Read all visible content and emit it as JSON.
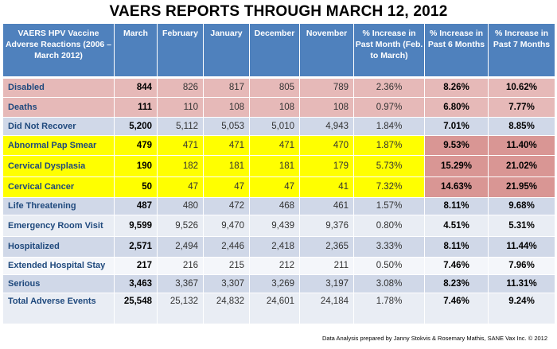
{
  "title": "VAERS REPORTS  THROUGH MARCH 12, 2012",
  "headers": [
    "VAERS HPV Vaccine Adverse Reactions (2006 – March 2012)",
    "March",
    "February",
    "January",
    "December",
    "November",
    "% Increase in Past Month (Feb. to March)",
    "% Increase in Past 6 Months",
    "% Increase in Past 7 Months"
  ],
  "rows": [
    {
      "label": "Disabled",
      "values": [
        "844",
        "826",
        "817",
        "805",
        "789",
        "2.36%",
        "8.26%",
        "10.62%"
      ],
      "style": "pink"
    },
    {
      "label": "Deaths",
      "values": [
        "111",
        "110",
        "108",
        "108",
        "108",
        "0.97%",
        "6.80%",
        "7.77%"
      ],
      "style": "pink"
    },
    {
      "label": "Did Not Recover",
      "values": [
        "5,200",
        "5,112",
        "5,053",
        "5,010",
        "4,943",
        "1.84%",
        "7.01%",
        "8.85%"
      ],
      "style": "blue"
    },
    {
      "label": "Abnormal Pap Smear",
      "values": [
        "479",
        "471",
        "471",
        "471",
        "470",
        "1.87%",
        "9.53%",
        "11.40%"
      ],
      "style": "yellow"
    },
    {
      "label": "Cervical Dysplasia",
      "values": [
        "190",
        "182",
        "181",
        "181",
        "179",
        "5.73%",
        "15.29%",
        "21.02%"
      ],
      "style": "yellow"
    },
    {
      "label": "Cervical Cancer",
      "values": [
        "50",
        "47",
        "47",
        "47",
        "41",
        "7.32%",
        "14.63%",
        "21.95%"
      ],
      "style": "yellow"
    },
    {
      "label": "Life Threatening",
      "values": [
        "487",
        "480",
        "472",
        "468",
        "461",
        "1.57%",
        "8.11%",
        "9.68%"
      ],
      "style": "blue"
    },
    {
      "label": "Emergency Room Visit",
      "values": [
        "9,599",
        "9,526",
        "9,470",
        "9,439",
        "9,376",
        "0.80%",
        "4.51%",
        "5.31%"
      ],
      "style": "light"
    },
    {
      "label": "Hospitalized",
      "values": [
        "2,571",
        "2,494",
        "2,446",
        "2,418",
        "2,365",
        "3.33%",
        "8.11%",
        "11.44%"
      ],
      "style": "blue"
    },
    {
      "label": "Extended Hospital  Stay",
      "values": [
        "217",
        "216",
        "215",
        "212",
        "211",
        "0.50%",
        "7.46%",
        "7.96%"
      ],
      "style": "white"
    },
    {
      "label": "Serious",
      "values": [
        "3,463",
        "3,367",
        "3,307",
        "3,269",
        "3,197",
        "3.08%",
        "8.23%",
        "11.31%"
      ],
      "style": "blue"
    },
    {
      "label": "Total Adverse Events",
      "values": [
        "25,548",
        "25,132",
        "24,832",
        "24,601",
        "24,184",
        "1.78%",
        "7.46%",
        "9.24%"
      ],
      "style": "light"
    }
  ],
  "colors": {
    "header": "#4f81bd",
    "pink": "#e6b9b8",
    "yellow": "#ffff00",
    "highlight": "#d99694",
    "blue": "#d0d8e8"
  },
  "credit": "Data Analysis prepared by Janny Stokvis & Rosemary Mathis, SANE Vax Inc. © 2012"
}
